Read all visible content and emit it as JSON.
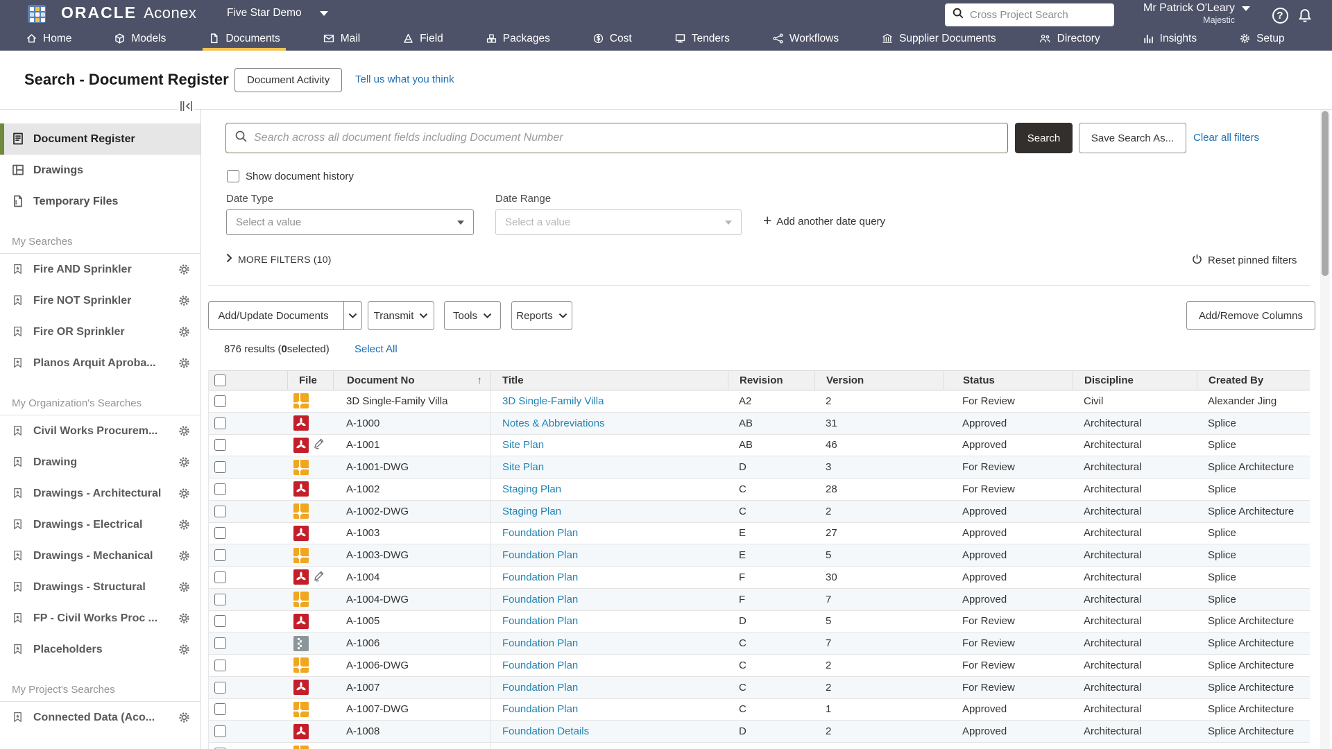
{
  "topbar": {
    "brand_primary": "ORACLE",
    "brand_secondary": "Aconex",
    "project_selector": "Five Star Demo",
    "search_placeholder": "Cross Project Search",
    "user_name": "Mr Patrick O'Leary",
    "user_org": "Majestic",
    "nav": [
      {
        "label": "Home",
        "icon": "home-icon",
        "active": false
      },
      {
        "label": "Models",
        "icon": "models-icon",
        "active": false
      },
      {
        "label": "Documents",
        "icon": "documents-icon",
        "active": true
      },
      {
        "label": "Mail",
        "icon": "mail-icon",
        "active": false
      },
      {
        "label": "Field",
        "icon": "field-icon",
        "active": false
      },
      {
        "label": "Packages",
        "icon": "packages-icon",
        "active": false
      },
      {
        "label": "Cost",
        "icon": "cost-icon",
        "active": false
      },
      {
        "label": "Tenders",
        "icon": "tenders-icon",
        "active": false
      },
      {
        "label": "Workflows",
        "icon": "workflows-icon",
        "active": false
      },
      {
        "label": "Supplier Documents",
        "icon": "supplier-documents-icon",
        "active": false
      },
      {
        "label": "Directory",
        "icon": "directory-icon",
        "active": false
      },
      {
        "label": "Insights",
        "icon": "insights-icon",
        "active": false
      },
      {
        "label": "Setup",
        "icon": "setup-gear-icon",
        "active": false
      }
    ]
  },
  "page_header": {
    "title": "Search - Document Register",
    "activity_button": "Document Activity",
    "feedback_link": "Tell us what you think"
  },
  "sidebar": {
    "top_items": [
      {
        "label": "Document Register",
        "icon": "document-register-icon",
        "selected": true
      },
      {
        "label": "Drawings",
        "icon": "drawings-icon",
        "selected": false
      },
      {
        "label": "Temporary Files",
        "icon": "temporary-files-icon",
        "selected": false
      }
    ],
    "item_icon": "bookmark-star-icon",
    "item_action_icon": "gear-icon",
    "sections": [
      {
        "title": "My Searches",
        "items": [
          "Fire AND Sprinkler",
          "Fire NOT Sprinkler",
          "Fire OR Sprinkler",
          "Planos Arquit Aproba..."
        ]
      },
      {
        "title": "My Organization's Searches",
        "items": [
          "Civil Works Procurem...",
          "Drawing",
          "Drawings - Architectural",
          "Drawings - Electrical",
          "Drawings - Mechanical",
          "Drawings - Structural",
          "FP - Civil Works Proc ...",
          "Placeholders"
        ]
      },
      {
        "title": "My Project's Searches",
        "items": [
          "Connected Data (Aco..."
        ]
      }
    ]
  },
  "filters": {
    "search_placeholder": "Search across all document fields including Document Number",
    "search_button": "Search",
    "save_search_button": "Save Search As...",
    "clear_link": "Clear all filters",
    "show_history_label": "Show document history",
    "date_type_label": "Date Type",
    "date_type_value": "Select a value",
    "date_range_label": "Date Range",
    "date_range_value": "Select a value",
    "add_date_query": "Add another date query",
    "more_filters": "MORE FILTERS (10)",
    "reset_pinned": "Reset pinned filters"
  },
  "toolbar": {
    "add_update": "Add/Update Documents",
    "transmit": "Transmit",
    "tools": "Tools",
    "reports": "Reports",
    "add_remove_columns": "Add/Remove Columns"
  },
  "results": {
    "prefix": "876 results (",
    "selected": "0",
    "suffix": " selected)",
    "select_all": "Select All"
  },
  "table": {
    "columns": [
      "File",
      "Document No",
      "Title",
      "Revision",
      "Version",
      "Status",
      "Discipline",
      "Created By"
    ],
    "rows": [
      {
        "file_type": "dwg",
        "edit": false,
        "doc_no": "3D Single-Family Villa",
        "title": "3D Single-Family Villa",
        "revision": "A2",
        "version": "2",
        "status": "For Review",
        "discipline": "Civil",
        "created_by": "Alexander Jing"
      },
      {
        "file_type": "pdf",
        "edit": false,
        "doc_no": "A-1000",
        "title": "Notes & Abbreviations",
        "revision": "AB",
        "version": "31",
        "status": "Approved",
        "discipline": "Architectural",
        "created_by": "Splice"
      },
      {
        "file_type": "pdf",
        "edit": true,
        "doc_no": "A-1001",
        "title": "Site Plan",
        "revision": "AB",
        "version": "46",
        "status": "Approved",
        "discipline": "Architectural",
        "created_by": "Splice"
      },
      {
        "file_type": "dwg",
        "edit": false,
        "doc_no": "A-1001-DWG",
        "title": "Site Plan",
        "revision": "D",
        "version": "3",
        "status": "For Review",
        "discipline": "Architectural",
        "created_by": "Splice Architecture"
      },
      {
        "file_type": "pdf",
        "edit": false,
        "doc_no": "A-1002",
        "title": "Staging Plan",
        "revision": "C",
        "version": "28",
        "status": "For Review",
        "discipline": "Architectural",
        "created_by": "Splice"
      },
      {
        "file_type": "dwg",
        "edit": false,
        "doc_no": "A-1002-DWG",
        "title": "Staging Plan",
        "revision": "C",
        "version": "2",
        "status": "Approved",
        "discipline": "Architectural",
        "created_by": "Splice Architecture"
      },
      {
        "file_type": "pdf",
        "edit": false,
        "doc_no": "A-1003",
        "title": "Foundation Plan",
        "revision": "E",
        "version": "27",
        "status": "Approved",
        "discipline": "Architectural",
        "created_by": "Splice"
      },
      {
        "file_type": "dwg",
        "edit": false,
        "doc_no": "A-1003-DWG",
        "title": "Foundation Plan",
        "revision": "E",
        "version": "5",
        "status": "Approved",
        "discipline": "Architectural",
        "created_by": "Splice"
      },
      {
        "file_type": "pdf",
        "edit": true,
        "doc_no": "A-1004",
        "title": "Foundation Plan",
        "revision": "F",
        "version": "30",
        "status": "Approved",
        "discipline": "Architectural",
        "created_by": "Splice"
      },
      {
        "file_type": "dwg",
        "edit": false,
        "doc_no": "A-1004-DWG",
        "title": "Foundation Plan",
        "revision": "F",
        "version": "7",
        "status": "Approved",
        "discipline": "Architectural",
        "created_by": "Splice"
      },
      {
        "file_type": "pdf",
        "edit": false,
        "doc_no": "A-1005",
        "title": "Foundation Plan",
        "revision": "D",
        "version": "5",
        "status": "For Review",
        "discipline": "Architectural",
        "created_by": "Splice Architecture"
      },
      {
        "file_type": "zip",
        "edit": false,
        "doc_no": "A-1006",
        "title": "Foundation Plan",
        "revision": "C",
        "version": "7",
        "status": "For Review",
        "discipline": "Architectural",
        "created_by": "Splice Architecture"
      },
      {
        "file_type": "dwg",
        "edit": false,
        "doc_no": "A-1006-DWG",
        "title": "Foundation Plan",
        "revision": "C",
        "version": "2",
        "status": "For Review",
        "discipline": "Architectural",
        "created_by": "Splice Architecture"
      },
      {
        "file_type": "pdf",
        "edit": false,
        "doc_no": "A-1007",
        "title": "Foundation Plan",
        "revision": "C",
        "version": "2",
        "status": "For Review",
        "discipline": "Architectural",
        "created_by": "Splice Architecture"
      },
      {
        "file_type": "dwg",
        "edit": false,
        "doc_no": "A-1007-DWG",
        "title": "Foundation Plan",
        "revision": "C",
        "version": "1",
        "status": "Approved",
        "discipline": "Architectural",
        "created_by": "Splice Architecture"
      },
      {
        "file_type": "pdf",
        "edit": false,
        "doc_no": "A-1008",
        "title": "Foundation Details",
        "revision": "D",
        "version": "2",
        "status": "Approved",
        "discipline": "Architectural",
        "created_by": "Splice Architecture"
      },
      {
        "file_type": "dwg",
        "edit": false,
        "doc_no": "",
        "title": "",
        "revision": "",
        "version": "",
        "status": "",
        "discipline": "",
        "created_by": "",
        "partial": true
      }
    ]
  },
  "colors": {
    "topbar_bg": "#4d5268",
    "active_tab_underline": "#f2c14e",
    "link_blue": "#1b6fb5",
    "title_link_blue": "#2183b3",
    "selected_accent_green": "#6f8a3f",
    "search_button_bg": "#322f2d",
    "dwg_icon_amber": "#f0a71f",
    "pdf_icon_red": "#c41e2a",
    "zip_icon_gray": "#8c959a"
  }
}
